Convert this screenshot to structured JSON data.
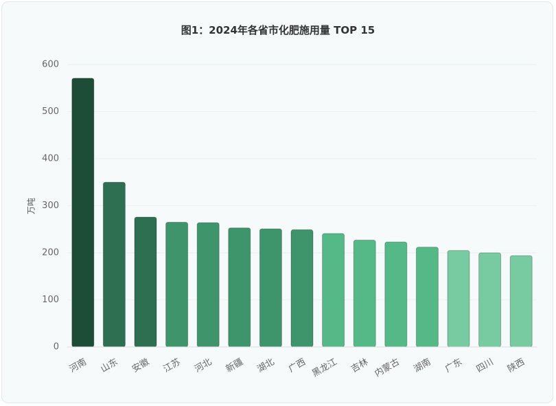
{
  "chart_data": {
    "type": "bar",
    "title": "图1：2024年各省市化肥施用量 TOP 15",
    "ylabel": "万吨",
    "xlabel": "",
    "ylim": [
      0,
      600
    ],
    "yticks": [
      0,
      100,
      200,
      300,
      400,
      500,
      600
    ],
    "grid": true,
    "categories": [
      "河南",
      "山东",
      "安徽",
      "江苏",
      "河北",
      "新疆",
      "湖北",
      "广西",
      "黑龙江",
      "吉林",
      "内蒙古",
      "湖南",
      "广东",
      "四川",
      "陕西"
    ],
    "values": [
      571,
      350,
      276,
      265,
      264,
      253,
      251,
      249,
      241,
      227,
      223,
      212,
      205,
      200,
      194
    ],
    "colors": [
      "#1d4d36",
      "#2e6f52",
      "#2e6f52",
      "#3e956b",
      "#3e956b",
      "#3e956b",
      "#3e956b",
      "#3e956b",
      "#55b987",
      "#55b987",
      "#55b987",
      "#55b987",
      "#78cba0",
      "#78cba0",
      "#78cba0"
    ]
  }
}
